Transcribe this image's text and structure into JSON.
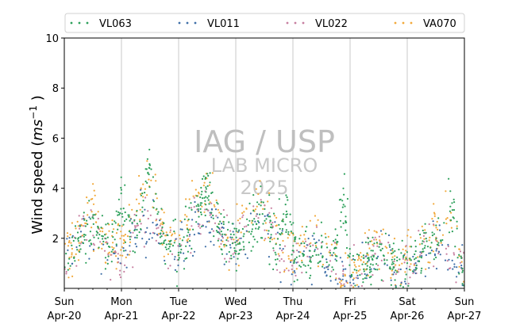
{
  "chart_data": {
    "type": "scatter",
    "title": "",
    "ylabel": "Wind speed (ms⁻¹)",
    "ylabel_parts": {
      "text": "Wind speed (",
      "italic": "ms",
      "sup": "−1",
      "close": " )"
    },
    "xlabel": "",
    "ylim": [
      0,
      10
    ],
    "yticks": [
      "2",
      "4",
      "6",
      "8",
      "10"
    ],
    "ytick_values": [
      2,
      4,
      6,
      8,
      10
    ],
    "xlim": [
      "2025-04-20",
      "2025-04-27"
    ],
    "xticks": [
      {
        "date": "2025-04-20",
        "day": "Sun",
        "label": "Apr-20"
      },
      {
        "date": "2025-04-21",
        "day": "Mon",
        "label": "Apr-21"
      },
      {
        "date": "2025-04-22",
        "day": "Tue",
        "label": "Apr-22"
      },
      {
        "date": "2025-04-23",
        "day": "Wed",
        "label": "Apr-23"
      },
      {
        "date": "2025-04-24",
        "day": "Thu",
        "label": "Apr-24"
      },
      {
        "date": "2025-04-25",
        "day": "Fri",
        "label": "Apr-25"
      },
      {
        "date": "2025-04-26",
        "day": "Sat",
        "label": "Apr-26"
      },
      {
        "date": "2025-04-27",
        "day": "Sun",
        "label": "Apr-27"
      }
    ],
    "grid": "vertical lines at day ticks",
    "legend_position": "top",
    "watermark": {
      "line1": "IAG / USP",
      "line2": "LAB MICRO",
      "line3": "2025"
    },
    "series": [
      {
        "name": "VL063",
        "color": "#2ca05a",
        "daily_mean": [
          1.6,
          2.0,
          2.3,
          2.6,
          1.5,
          0.7,
          1.3,
          1.4
        ],
        "peaks": [
          {
            "x": "2025-04-21T00:00",
            "y": 4.0
          },
          {
            "x": "2025-04-21T12:00",
            "y": 5.2
          },
          {
            "x": "2025-04-22T12:00",
            "y": 4.3
          },
          {
            "x": "2025-04-23T21:00",
            "y": 3.5
          },
          {
            "x": "2025-04-24T21:00",
            "y": 4.5
          },
          {
            "x": "2025-04-26T18:00",
            "y": 3.8
          }
        ]
      },
      {
        "name": "VL011",
        "color": "#3f6fa8",
        "daily_mean": [
          1.5,
          1.9,
          2.1,
          2.4,
          1.4,
          0.6,
          1.2,
          1.3
        ]
      },
      {
        "name": "VL022",
        "color": "#c77fa0",
        "daily_mean": [
          1.6,
          2.0,
          2.2,
          2.5,
          1.5,
          0.7,
          1.3,
          1.4
        ]
      },
      {
        "name": "VA070",
        "color": "#f2a93b",
        "daily_mean": [
          1.9,
          2.4,
          2.8,
          2.9,
          2.0,
          0.9,
          1.6,
          1.7
        ],
        "peaks": [
          {
            "x": "2025-04-21T12:00",
            "y": 4.6
          },
          {
            "x": "2025-04-26T18:00",
            "y": 3.9
          }
        ]
      }
    ]
  }
}
